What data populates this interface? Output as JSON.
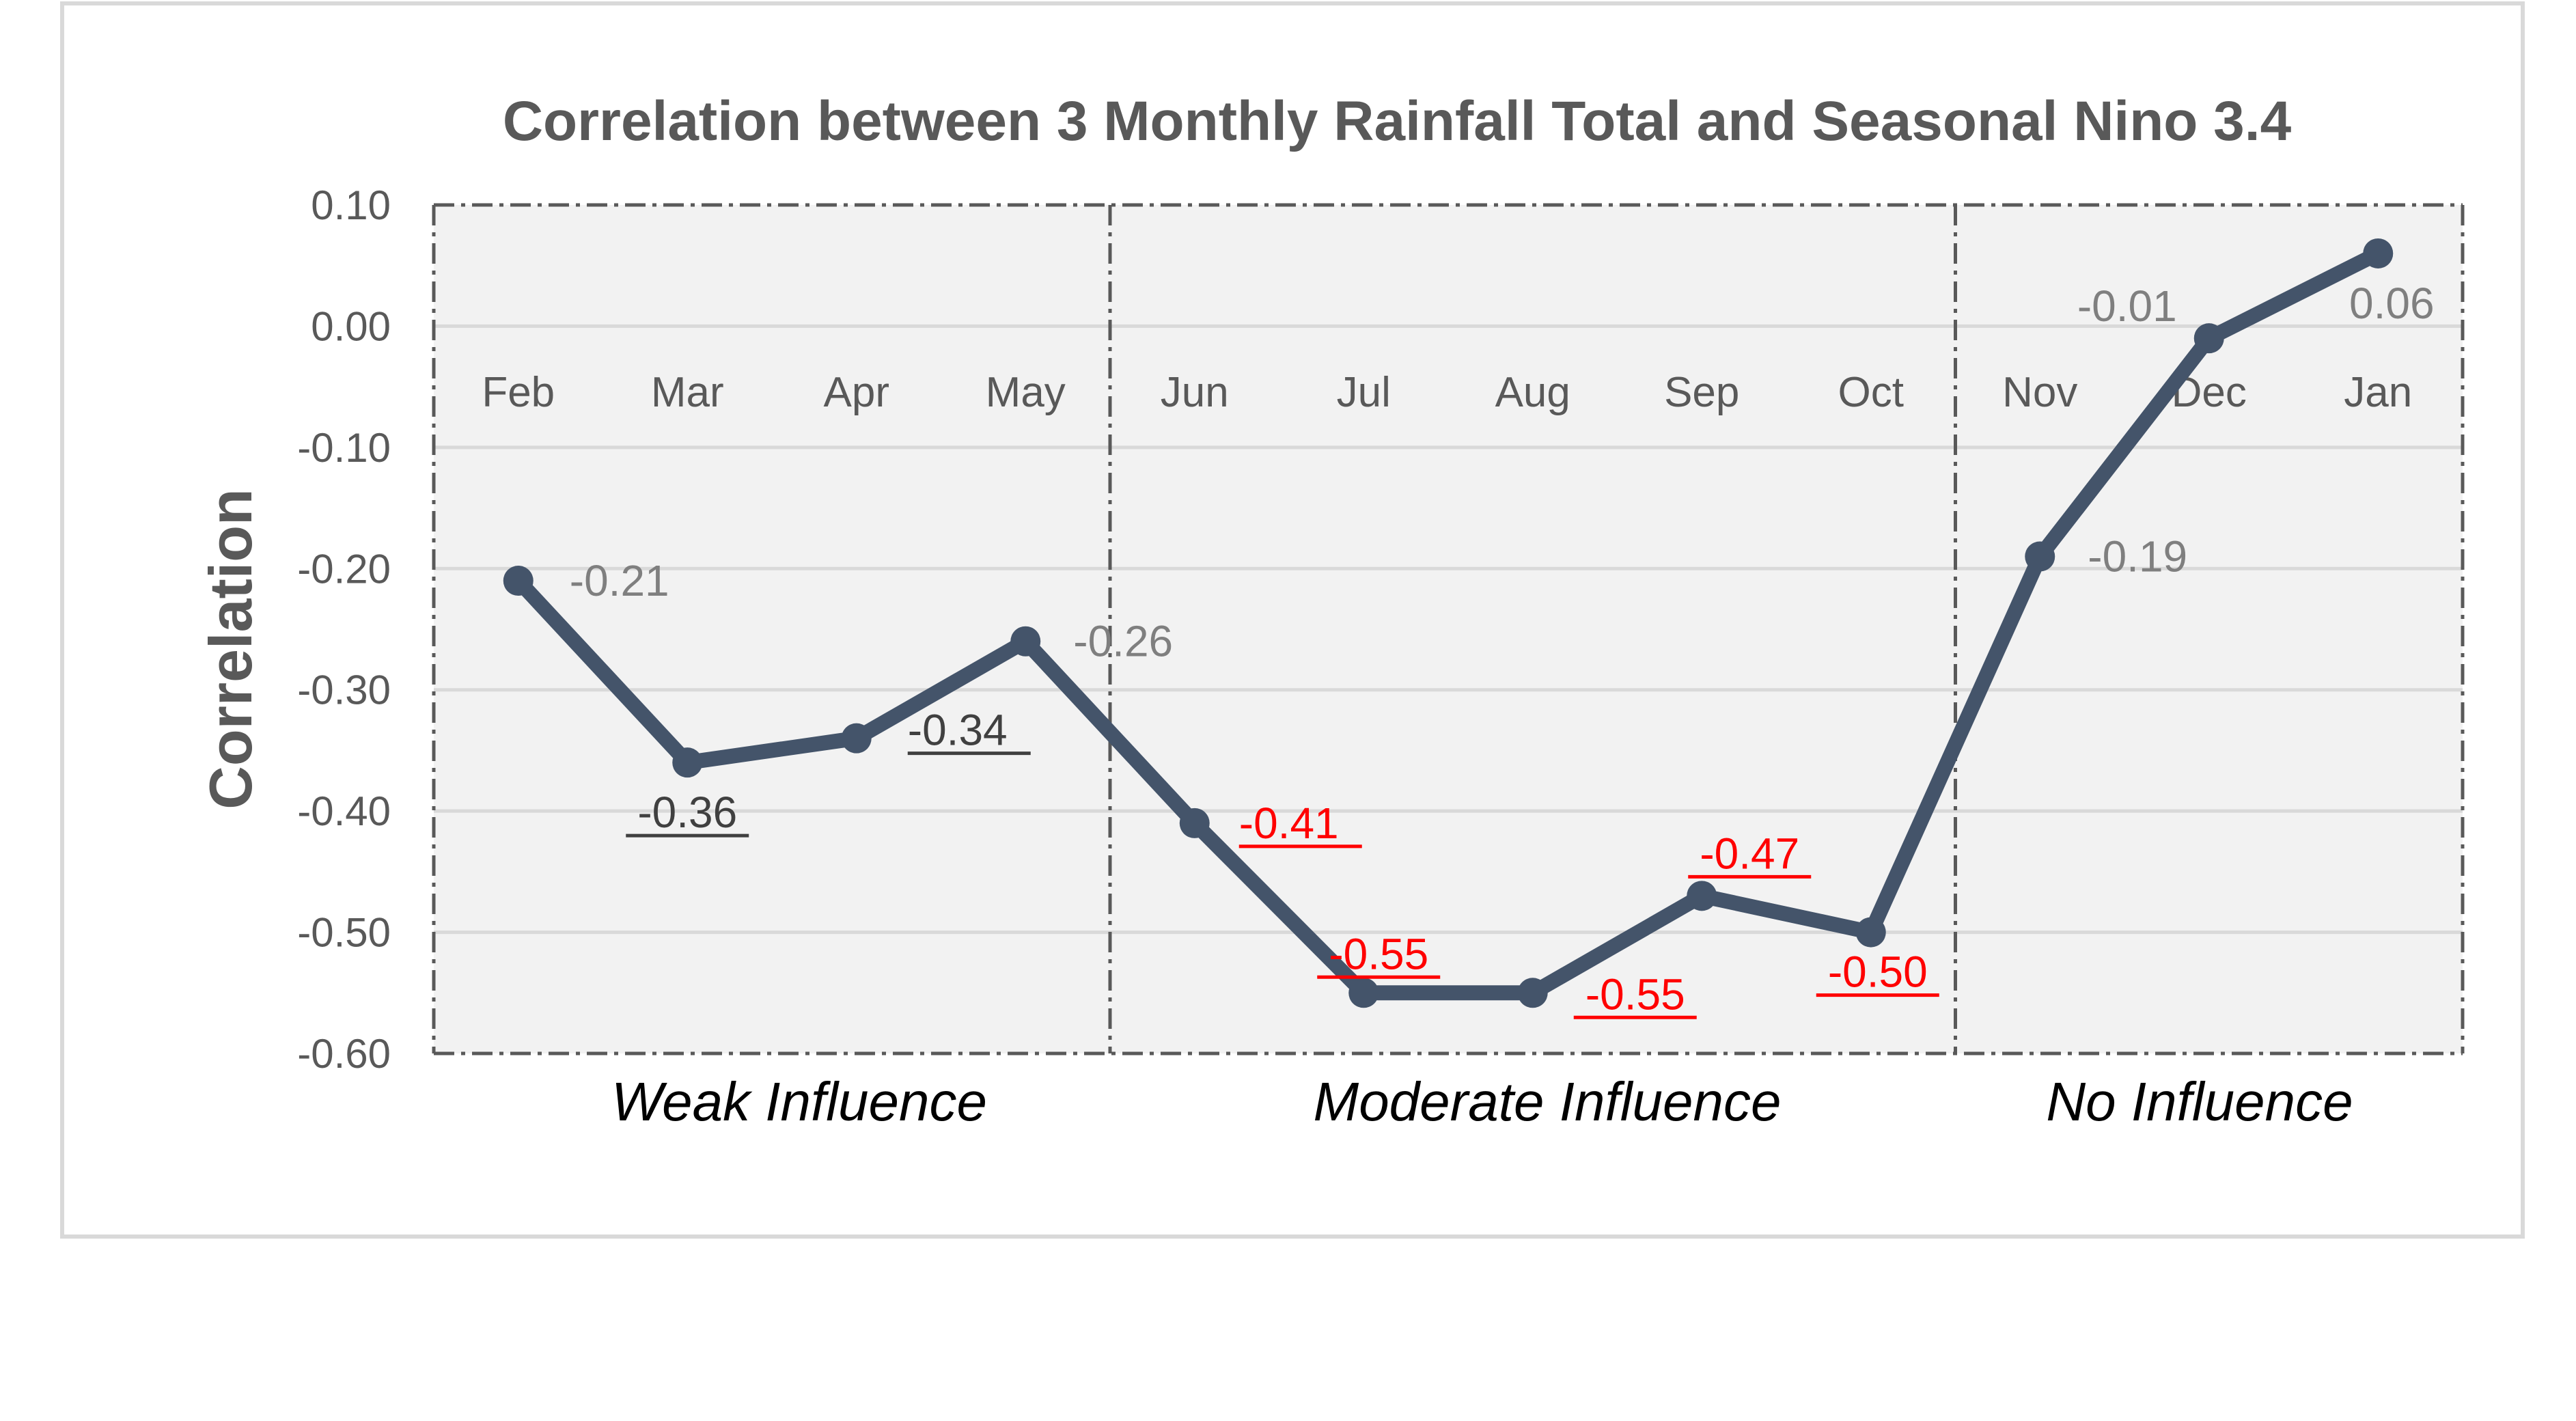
{
  "chart_data": {
    "type": "line",
    "title": "Correlation between 3 Monthly Rainfall Total and Seasonal Nino 3.4",
    "xlabel": "",
    "ylabel": "Correlation",
    "ylim": [
      -0.6,
      0.1
    ],
    "yticks": [
      "0.10",
      "0.00",
      "-0.10",
      "-0.20",
      "-0.30",
      "-0.40",
      "-0.50",
      "-0.60"
    ],
    "categories": [
      "Feb",
      "Mar",
      "Apr",
      "May",
      "Jun",
      "Jul",
      "Aug",
      "Sep",
      "Oct",
      "Nov",
      "Dec",
      "Jan"
    ],
    "values": [
      -0.21,
      -0.36,
      -0.34,
      -0.26,
      -0.41,
      -0.55,
      -0.55,
      -0.47,
      -0.5,
      -0.19,
      -0.01,
      0.06
    ],
    "data_labels": [
      "-0.21",
      "-0.36",
      "-0.34",
      "-0.26",
      "-0.41",
      "-0.55",
      "-0.55",
      "-0.47",
      "-0.50",
      "-0.19",
      "-0.01",
      "0.06"
    ],
    "label_styles": [
      "plain",
      "underlined",
      "underlined",
      "plain",
      "red-underlined",
      "red-underlined",
      "red-underlined",
      "red-underlined",
      "red-underlined",
      "plain",
      "plain",
      "plain"
    ],
    "groups": [
      {
        "label": "Weak Influence",
        "start": 0,
        "end": 3
      },
      {
        "label": "Moderate Influence",
        "start": 4,
        "end": 8
      },
      {
        "label": "No Influence",
        "start": 9,
        "end": 11
      }
    ],
    "grid": true,
    "colors": {
      "line": "#44546a",
      "plot_background": "#f2f2f2",
      "grid": "#d9d9d9",
      "axis_text": "#595959",
      "label_plain": "#7f7f7f",
      "label_underlined": "#404040",
      "label_red": "#ff0000",
      "divider": "#595959"
    }
  }
}
